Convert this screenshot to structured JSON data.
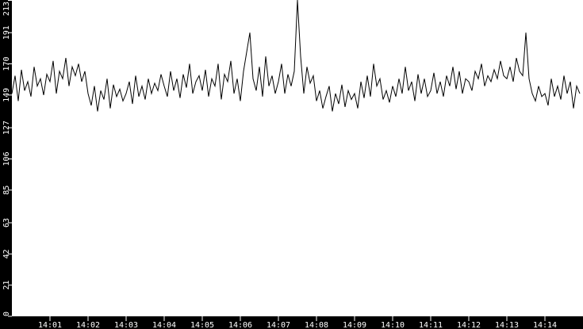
{
  "chart_data": {
    "type": "line",
    "title": "",
    "xlabel": "",
    "ylabel": "",
    "xlim": [
      "14:00",
      "14:15"
    ],
    "ylim": [
      0,
      213
    ],
    "y_ticks": [
      "0",
      "21",
      "42",
      "63",
      "85",
      "106",
      "127",
      "149",
      "170",
      "191",
      "213"
    ],
    "y_tick_values": [
      0,
      21,
      42,
      63,
      85,
      106,
      127,
      149,
      170,
      191,
      213
    ],
    "x_ticks": [
      "14:01",
      "14:02",
      "14:03",
      "14:04",
      "14:05",
      "14:06",
      "14:07",
      "14:08",
      "14:09",
      "14:10",
      "14:11",
      "14:12",
      "14:13",
      "14:14"
    ],
    "grid": false,
    "sample_interval_seconds": 5,
    "samples_by_minute": [
      {
        "minute": "14:00",
        "values": [
          150,
          162,
          145,
          166,
          152,
          158,
          148,
          168,
          155,
          160,
          149,
          163
        ]
      },
      {
        "minute": "14:01",
        "values": [
          158,
          172,
          150,
          165,
          160,
          174,
          155,
          168,
          162,
          170,
          158,
          165
        ]
      },
      {
        "minute": "14:02",
        "values": [
          150,
          142,
          155,
          138,
          152,
          146,
          160,
          140,
          156,
          148,
          153,
          145
        ]
      },
      {
        "minute": "14:03",
        "values": [
          150,
          158,
          143,
          162,
          148,
          155,
          146,
          160,
          150,
          157,
          152,
          163
        ]
      },
      {
        "minute": "14:04",
        "values": [
          155,
          148,
          165,
          152,
          160,
          147,
          163,
          154,
          170,
          150,
          158,
          162
        ]
      },
      {
        "minute": "14:05",
        "values": [
          152,
          166,
          148,
          160,
          155,
          170,
          146,
          163,
          158,
          172,
          150,
          160
        ]
      },
      {
        "minute": "14:06",
        "values": [
          145,
          165,
          178,
          191,
          160,
          152,
          168,
          148,
          175,
          155,
          162,
          150
        ]
      },
      {
        "minute": "14:07",
        "values": [
          158,
          170,
          150,
          163,
          155,
          165,
          213,
          175,
          150,
          168,
          157,
          162
        ]
      },
      {
        "minute": "14:08",
        "values": [
          145,
          152,
          140,
          148,
          155,
          138,
          150,
          143,
          156,
          141,
          152,
          146
        ]
      },
      {
        "minute": "14:09",
        "values": [
          150,
          140,
          158,
          147,
          162,
          148,
          170,
          155,
          160,
          146,
          152,
          144
        ]
      },
      {
        "minute": "14:10",
        "values": [
          155,
          148,
          160,
          150,
          168,
          152,
          158,
          145,
          163,
          150,
          160,
          148
        ]
      },
      {
        "minute": "14:11",
        "values": [
          152,
          164,
          150,
          158,
          148,
          162,
          155,
          168,
          153,
          165,
          150,
          160
        ]
      },
      {
        "minute": "14:12",
        "values": [
          158,
          152,
          165,
          160,
          170,
          155,
          162,
          158,
          166,
          160,
          172,
          162
        ]
      },
      {
        "minute": "14:13",
        "values": [
          160,
          168,
          158,
          174,
          165,
          162,
          191,
          160,
          150,
          145,
          155,
          148
        ]
      },
      {
        "minute": "14:14",
        "values": [
          150,
          142,
          160,
          148,
          155,
          146,
          162,
          150,
          158,
          140,
          155,
          150
        ]
      }
    ],
    "colors": {
      "background": "#000000",
      "plot": "#ffffff",
      "line": "#000000",
      "axis_text": "#ffffff"
    }
  }
}
